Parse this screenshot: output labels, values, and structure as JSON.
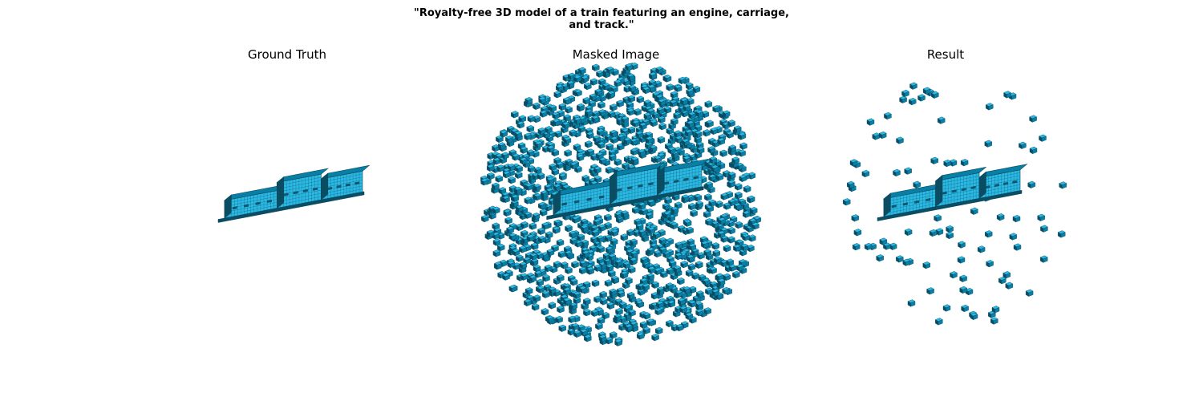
{
  "figure": {
    "caption_lines": [
      "\"Royalty-free 3D model of a train featuring an engine, carriage,",
      "and track.\""
    ]
  },
  "panels": [
    {
      "title": "Ground Truth",
      "content": "voxel train model"
    },
    {
      "title": "Masked Image",
      "content": "voxel train model with dense scattered voxels"
    },
    {
      "title": "Result",
      "content": "voxel train model with sparse scattered voxels"
    }
  ],
  "colors": {
    "voxel_top": "#2bb8e3",
    "voxel_side": "#0a7fa5",
    "voxel_dark": "#0b4d63",
    "grid_line": "#064a60"
  }
}
